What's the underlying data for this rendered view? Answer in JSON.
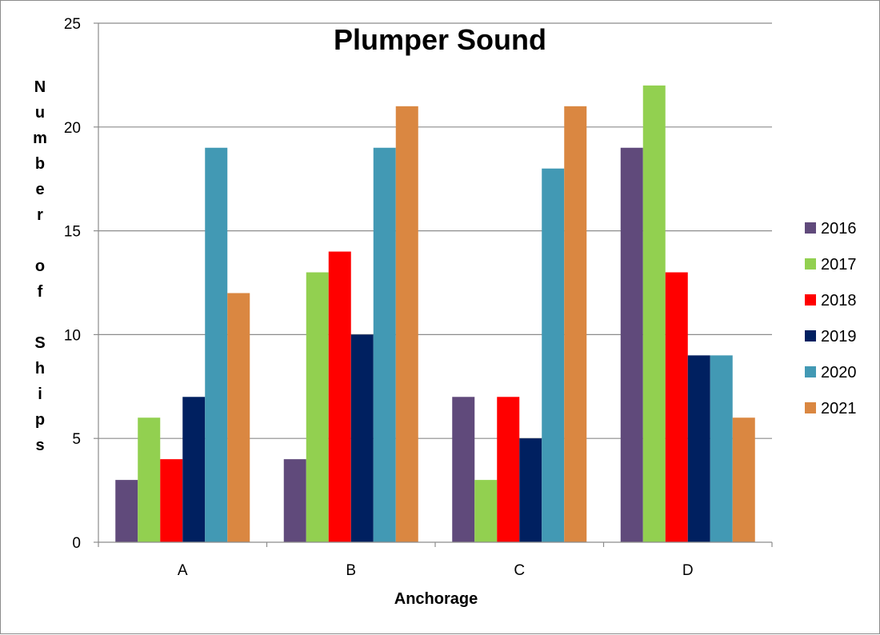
{
  "chart_data": {
    "type": "bar",
    "title": "Plumper Sound",
    "xlabel": "Anchorage",
    "ylabel": "Number of Ships",
    "categories": [
      "A",
      "B",
      "C",
      "D"
    ],
    "ylim": [
      0,
      25
    ],
    "yticks": [
      0,
      5,
      10,
      15,
      20,
      25
    ],
    "grid": true,
    "legend_position": "right",
    "series": [
      {
        "name": "2016",
        "color": "#604a7b",
        "values": [
          3,
          4,
          7,
          19
        ]
      },
      {
        "name": "2017",
        "color": "#92d050",
        "values": [
          6,
          13,
          3,
          22
        ]
      },
      {
        "name": "2018",
        "color": "#ff0000",
        "values": [
          4,
          14,
          7,
          13
        ]
      },
      {
        "name": "2019",
        "color": "#002060",
        "values": [
          7,
          10,
          5,
          9
        ]
      },
      {
        "name": "2020",
        "color": "#4299b4",
        "values": [
          19,
          19,
          18,
          9
        ]
      },
      {
        "name": "2021",
        "color": "#da8741",
        "values": [
          12,
          21,
          21,
          6
        ]
      }
    ]
  }
}
